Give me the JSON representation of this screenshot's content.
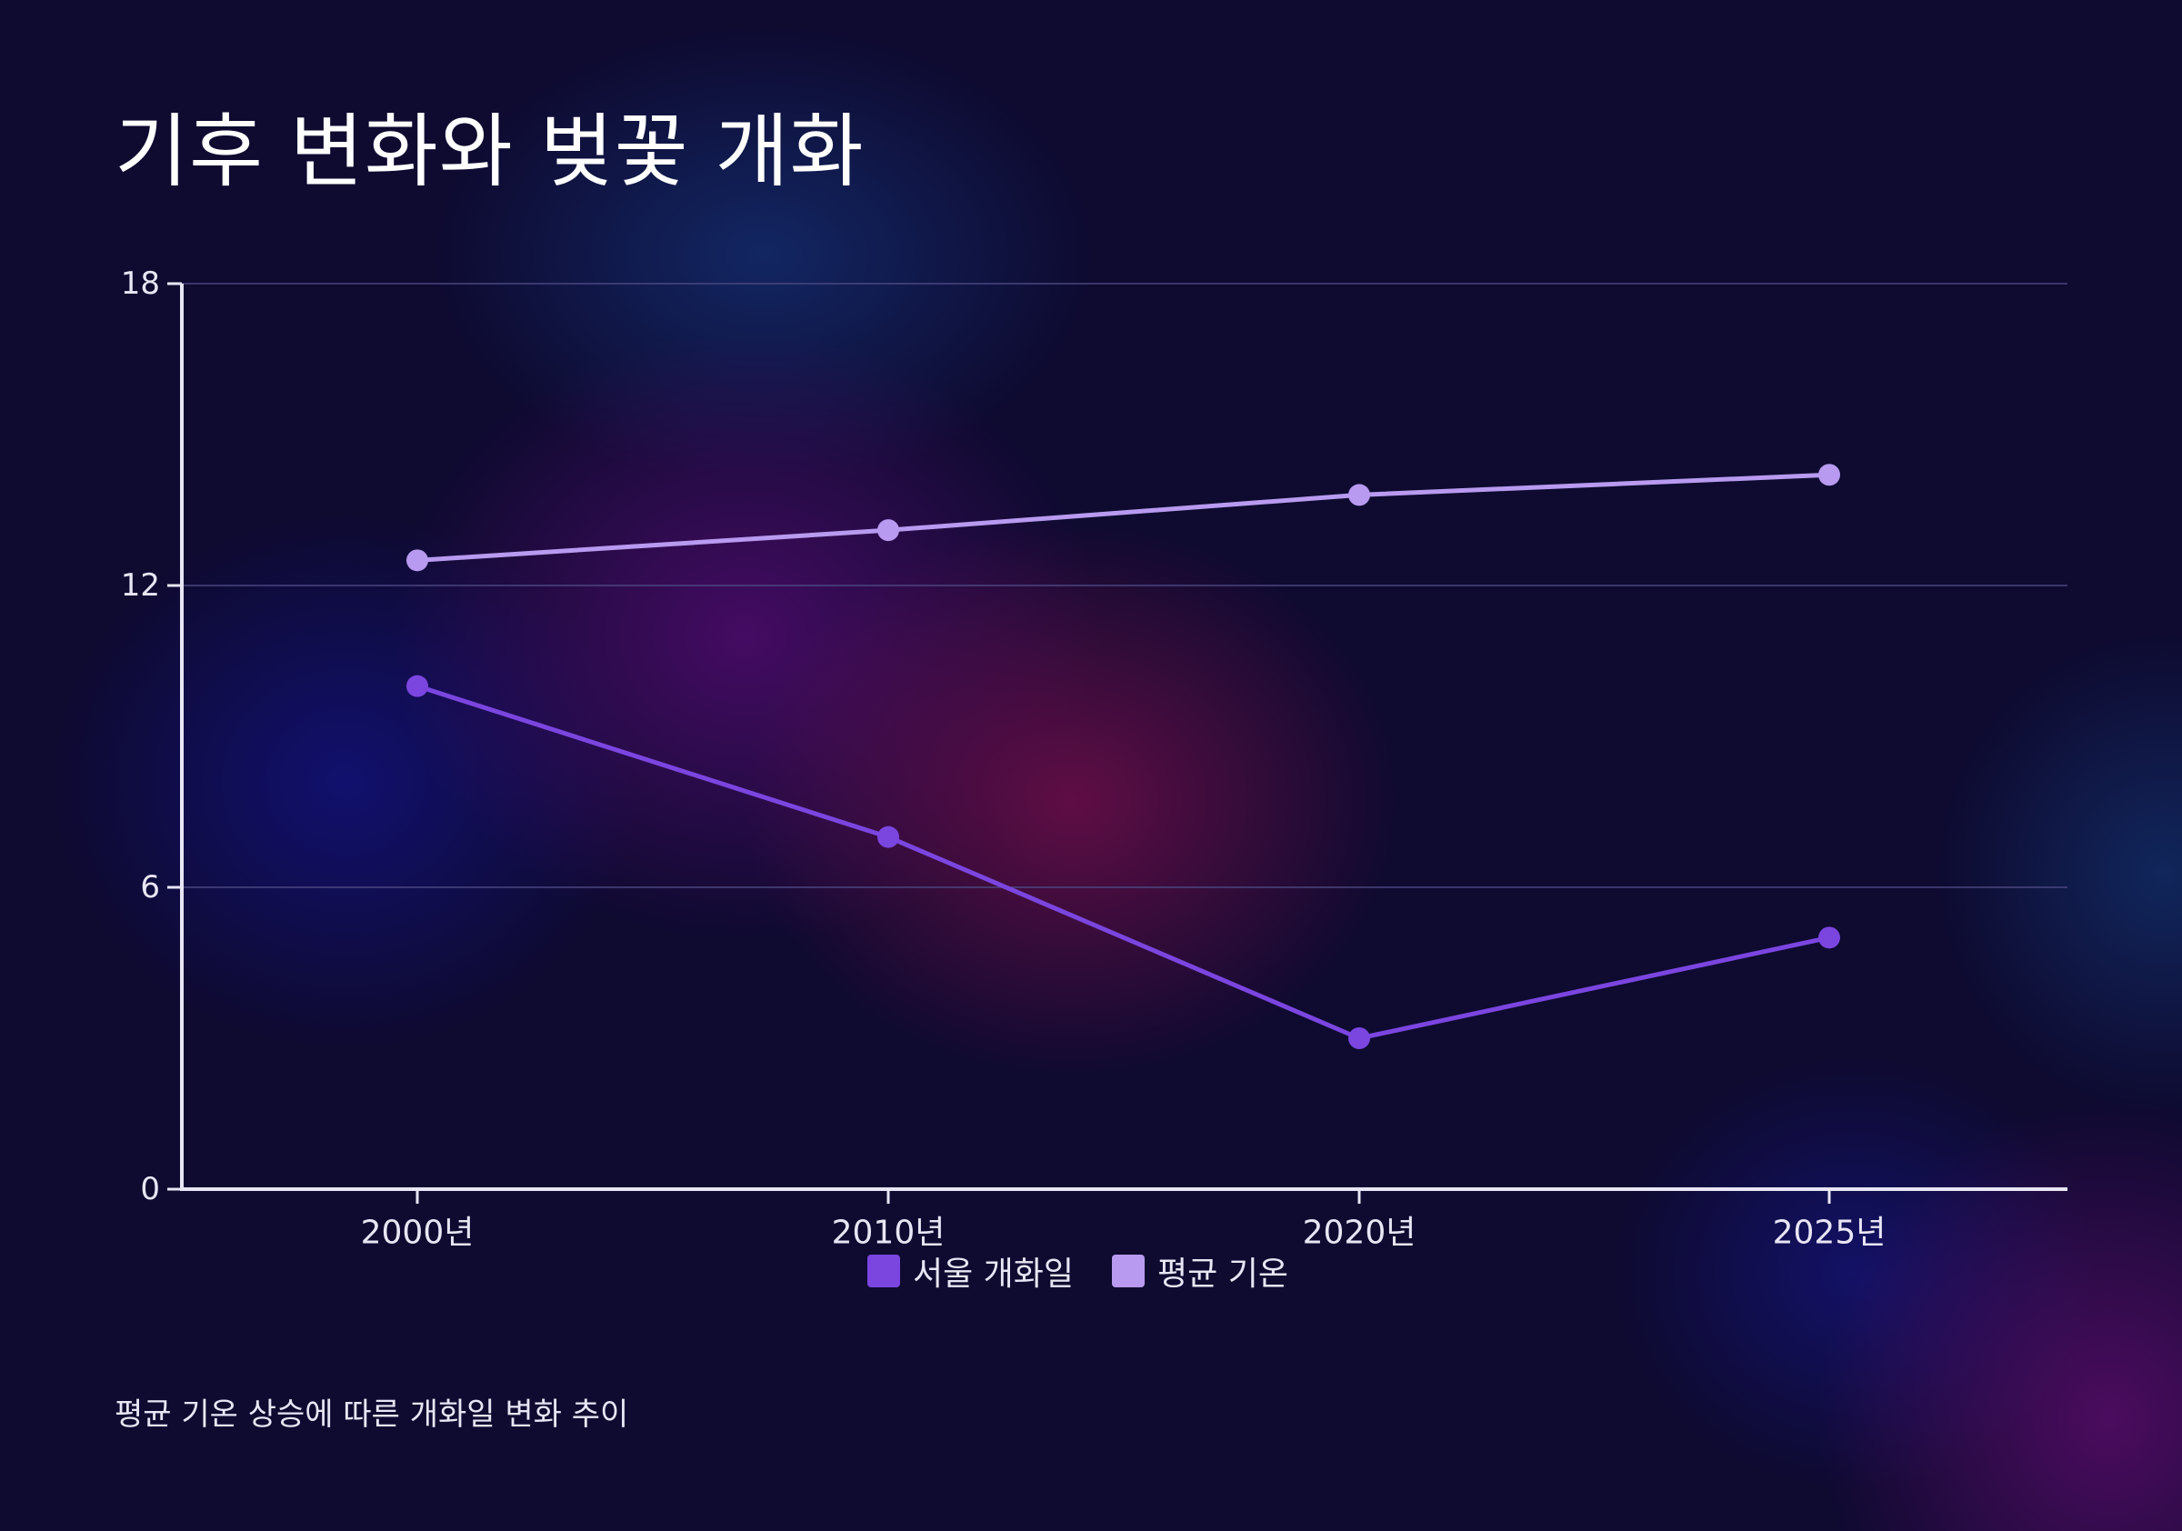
{
  "title": "기후 변화와 벚꽃 개화",
  "caption": "평균 기온 상승에 따른 개화일 변화 추이",
  "colors": {
    "background": "#0e0a30",
    "series_1": "#7b45e0",
    "series_2": "#b89af0",
    "axis": "#e8e6f4",
    "grid": "#4a4680"
  },
  "chart_data": {
    "type": "line",
    "categories": [
      "2000년",
      "2010년",
      "2020년",
      "2025년"
    ],
    "series": [
      {
        "name": "서울 개화일",
        "values": [
          10,
          7,
          3,
          5
        ]
      },
      {
        "name": "평균 기온",
        "values": [
          12.5,
          13.1,
          13.8,
          14.2
        ]
      }
    ],
    "ylim": [
      0,
      18
    ],
    "yticks": [
      "0",
      "6",
      "12",
      "18"
    ],
    "grid": true,
    "legend": "bottom-center"
  }
}
